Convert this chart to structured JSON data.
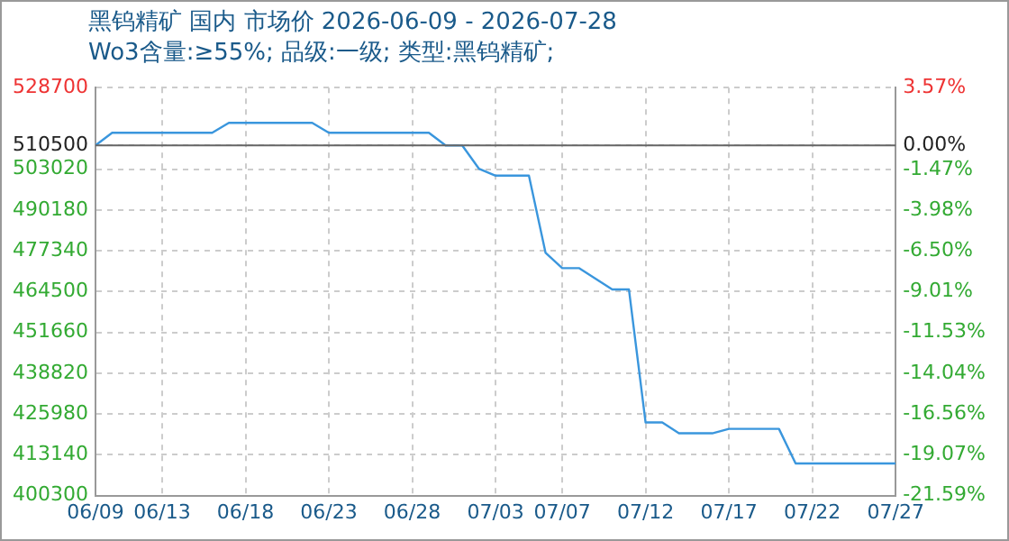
{
  "chart_data": {
    "type": "line",
    "title": "黑钨精矿 国内 市场价 2026-06-09 - 2026-07-28",
    "subtitle": "Wo3含量:≥55%; 品级:一级; 类型:黑钨精矿;",
    "x": [
      "--06-09",
      "--06-10",
      "--06-16",
      "--06-17",
      "--06-22",
      "--06-23",
      "--06-29",
      "--06-30",
      "--07-01",
      "--07-02",
      "--07-03",
      "--07-05",
      "--07-06",
      "--07-07",
      "--07-08",
      "--07-10",
      "--07-11",
      "--07-12",
      "--07-13",
      "--07-14",
      "--07-16",
      "--07-17",
      "--07-20",
      "--07-21",
      "--07-27"
    ],
    "series": [
      {
        "color": "#3a96dd",
        "values": [
          510500,
          514500,
          514500,
          517600,
          517600,
          514500,
          514500,
          510500,
          510500,
          503200,
          501000,
          501000,
          476700,
          471900,
          471900,
          465200,
          465200,
          423300,
          423300,
          419900,
          419900,
          421300,
          421300,
          410400,
          410400
        ]
      }
    ],
    "xlim": [
      "--06-09",
      "--07-27"
    ],
    "xticks": [
      {
        "value": "--06-09",
        "label": "06/09"
      },
      {
        "value": "--06-13",
        "label": "06/13"
      },
      {
        "value": "--06-18",
        "label": "06/18"
      },
      {
        "value": "--06-23",
        "label": "06/23"
      },
      {
        "value": "--06-28",
        "label": "06/28"
      },
      {
        "value": "--07-03",
        "label": "07/03"
      },
      {
        "value": "--07-07",
        "label": "07/07"
      },
      {
        "value": "--07-12",
        "label": "07/12"
      },
      {
        "value": "--07-17",
        "label": "07/17"
      },
      {
        "value": "--07-22",
        "label": "07/22"
      },
      {
        "value": "--07-27",
        "label": "07/27"
      }
    ],
    "ylim": [
      400300,
      528700
    ],
    "yticks": [
      400300,
      413140,
      425980,
      438820,
      451660,
      464500,
      477340,
      490180,
      503020,
      510500,
      528700
    ],
    "y2lim": [
      -21.59,
      3.57
    ],
    "y2ticks": [
      {
        "value": -21.59,
        "label": "-21.59%"
      },
      {
        "value": -19.07,
        "label": "-19.07%"
      },
      {
        "value": -16.56,
        "label": "-16.56%"
      },
      {
        "value": -14.04,
        "label": "-14.04%"
      },
      {
        "value": -11.53,
        "label": "-11.53%"
      },
      {
        "value": -9.01,
        "label": "-9.01%"
      },
      {
        "value": -6.5,
        "label": "-6.50%"
      },
      {
        "value": -3.98,
        "label": "-3.98%"
      },
      {
        "value": -1.47,
        "label": "-1.47%"
      },
      {
        "value": 0,
        "label": "0.00%"
      },
      {
        "value": 3.57,
        "label": "3.57%"
      }
    ],
    "ref_lines": [
      {
        "axis": "y",
        "value": 510500,
        "color": "#666666"
      }
    ],
    "grid": true,
    "legend": false,
    "marker": "none",
    "line_style": "solid"
  }
}
